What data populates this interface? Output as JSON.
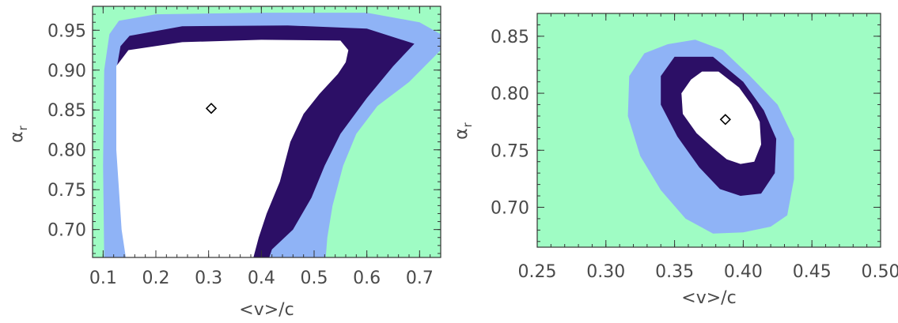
{
  "colors": {
    "background_region": "#9ffcc4",
    "contour_3sigma": "#8fb3f6",
    "contour_2sigma": "#2c0f66",
    "contour_1sigma": "#ffffff",
    "marker": "#000000"
  },
  "chart_data": [
    {
      "type": "contour",
      "xlabel": "<v>/c",
      "ylabel_main": "α",
      "ylabel_sub": "r",
      "xlim": [
        0.08,
        0.74
      ],
      "ylim": [
        0.665,
        0.98
      ],
      "xticks": [
        0.1,
        0.2,
        0.3,
        0.4,
        0.5,
        0.6,
        0.7
      ],
      "xtick_labels": [
        "0.1",
        "0.2",
        "0.3",
        "0.4",
        "0.5",
        "0.6",
        "0.7"
      ],
      "yticks": [
        0.7,
        0.75,
        0.8,
        0.85,
        0.9,
        0.95
      ],
      "ytick_labels": [
        "0.70",
        "0.75",
        "0.80",
        "0.85",
        "0.90",
        "0.95"
      ],
      "best_fit": {
        "x": 0.305,
        "y": 0.852
      },
      "contours": [
        {
          "level": "outer",
          "color_key": "contour_3sigma",
          "points": [
            [
              0.102,
              0.665
            ],
            [
              0.1,
              0.78
            ],
            [
              0.102,
              0.9
            ],
            [
              0.112,
              0.945
            ],
            [
              0.13,
              0.962
            ],
            [
              0.2,
              0.97
            ],
            [
              0.4,
              0.972
            ],
            [
              0.6,
              0.972
            ],
            [
              0.7,
              0.96
            ],
            [
              0.74,
              0.945
            ],
            [
              0.74,
              0.925
            ],
            [
              0.68,
              0.885
            ],
            [
              0.62,
              0.855
            ],
            [
              0.58,
              0.82
            ],
            [
              0.555,
              0.78
            ],
            [
              0.535,
              0.73
            ],
            [
              0.525,
              0.69
            ],
            [
              0.522,
              0.665
            ]
          ]
        },
        {
          "level": "middle",
          "color_key": "contour_2sigma",
          "points": [
            [
              0.152,
              0.665
            ],
            [
              0.142,
              0.7
            ],
            [
              0.128,
              0.8
            ],
            [
              0.125,
              0.9
            ],
            [
              0.133,
              0.93
            ],
            [
              0.15,
              0.943
            ],
            [
              0.25,
              0.955
            ],
            [
              0.45,
              0.956
            ],
            [
              0.6,
              0.952
            ],
            [
              0.69,
              0.933
            ],
            [
              0.65,
              0.905
            ],
            [
              0.6,
              0.865
            ],
            [
              0.55,
              0.82
            ],
            [
              0.52,
              0.78
            ],
            [
              0.495,
              0.74
            ],
            [
              0.46,
              0.7
            ],
            [
              0.42,
              0.675
            ],
            [
              0.415,
              0.665
            ]
          ]
        },
        {
          "level": "inner",
          "color_key": "contour_1sigma",
          "points": [
            [
              0.143,
              0.665
            ],
            [
              0.135,
              0.7
            ],
            [
              0.125,
              0.8
            ],
            [
              0.125,
              0.905
            ],
            [
              0.148,
              0.925
            ],
            [
              0.25,
              0.935
            ],
            [
              0.4,
              0.938
            ],
            [
              0.55,
              0.937
            ],
            [
              0.565,
              0.925
            ],
            [
              0.56,
              0.91
            ],
            [
              0.545,
              0.895
            ],
            [
              0.51,
              0.87
            ],
            [
              0.48,
              0.845
            ],
            [
              0.455,
              0.81
            ],
            [
              0.435,
              0.76
            ],
            [
              0.41,
              0.72
            ],
            [
              0.395,
              0.69
            ],
            [
              0.385,
              0.665
            ]
          ]
        }
      ]
    },
    {
      "type": "contour",
      "xlabel": "<v>/c",
      "ylabel_main": "α",
      "ylabel_sub": "r",
      "xlim": [
        0.25,
        0.5
      ],
      "ylim": [
        0.665,
        0.87
      ],
      "xticks": [
        0.25,
        0.3,
        0.35,
        0.4,
        0.45,
        0.5
      ],
      "xtick_labels": [
        "0.25",
        "0.30",
        "0.35",
        "0.40",
        "0.45",
        "0.50"
      ],
      "yticks": [
        0.7,
        0.75,
        0.8,
        0.85
      ],
      "ytick_labels": [
        "0.70",
        "0.75",
        "0.80",
        "0.85"
      ],
      "best_fit": {
        "x": 0.387,
        "y": 0.777
      },
      "contours": [
        {
          "level": "outer",
          "color_key": "contour_3sigma",
          "points": [
            [
              0.345,
              0.843
            ],
            [
              0.365,
              0.847
            ],
            [
              0.385,
              0.838
            ],
            [
              0.405,
              0.815
            ],
            [
              0.425,
              0.79
            ],
            [
              0.437,
              0.76
            ],
            [
              0.437,
              0.725
            ],
            [
              0.432,
              0.693
            ],
            [
              0.42,
              0.683
            ],
            [
              0.4,
              0.678
            ],
            [
              0.378,
              0.677
            ],
            [
              0.358,
              0.69
            ],
            [
              0.34,
              0.715
            ],
            [
              0.325,
              0.745
            ],
            [
              0.316,
              0.78
            ],
            [
              0.317,
              0.815
            ],
            [
              0.328,
              0.835
            ]
          ]
        },
        {
          "level": "middle",
          "color_key": "contour_2sigma",
          "points": [
            [
              0.35,
              0.832
            ],
            [
              0.378,
              0.832
            ],
            [
              0.4,
              0.81
            ],
            [
              0.415,
              0.785
            ],
            [
              0.424,
              0.76
            ],
            [
              0.423,
              0.73
            ],
            [
              0.413,
              0.712
            ],
            [
              0.398,
              0.71
            ],
            [
              0.383,
              0.716
            ],
            [
              0.368,
              0.735
            ],
            [
              0.352,
              0.762
            ],
            [
              0.34,
              0.79
            ],
            [
              0.34,
              0.815
            ]
          ]
        },
        {
          "level": "inner",
          "color_key": "contour_1sigma",
          "points": [
            [
              0.37,
              0.819
            ],
            [
              0.382,
              0.819
            ],
            [
              0.397,
              0.805
            ],
            [
              0.406,
              0.79
            ],
            [
              0.412,
              0.775
            ],
            [
              0.413,
              0.755
            ],
            [
              0.408,
              0.74
            ],
            [
              0.398,
              0.738
            ],
            [
              0.388,
              0.742
            ],
            [
              0.378,
              0.752
            ],
            [
              0.366,
              0.765
            ],
            [
              0.356,
              0.782
            ],
            [
              0.355,
              0.8
            ],
            [
              0.362,
              0.812
            ]
          ]
        }
      ]
    }
  ]
}
